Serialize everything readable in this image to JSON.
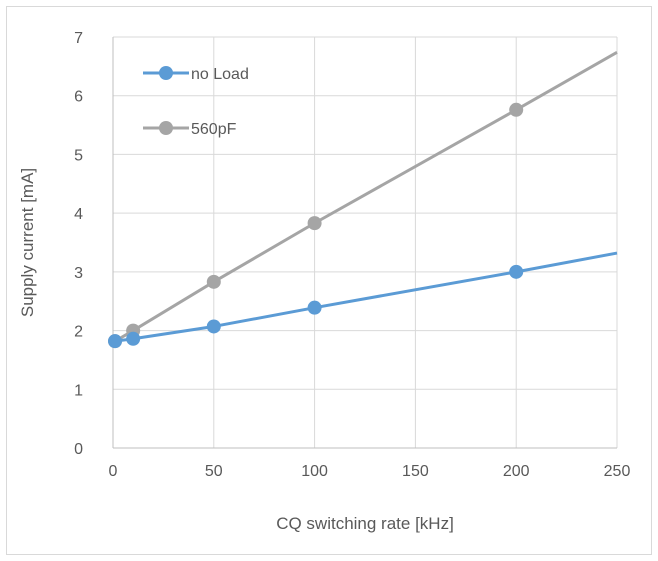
{
  "chart_data": {
    "type": "line",
    "title": "",
    "xlabel": "CQ switching rate [kHz]",
    "ylabel": "Supply current [mA]",
    "xlim": [
      0,
      250
    ],
    "ylim": [
      0,
      7
    ],
    "xticks": [
      0,
      50,
      100,
      150,
      200,
      250
    ],
    "yticks": [
      0,
      1,
      2,
      3,
      4,
      5,
      6,
      7
    ],
    "grid": true,
    "legend": "top-left",
    "series": [
      {
        "name": "no Load",
        "color": "#5b9bd5",
        "marker_x": [
          1,
          10,
          50,
          100,
          200
        ],
        "marker_y": [
          1.82,
          1.86,
          2.07,
          2.39,
          3.0
        ],
        "trend_end": [
          250,
          3.32
        ]
      },
      {
        "name": "560pF",
        "color": "#a5a5a5",
        "marker_x": [
          1,
          10,
          50,
          100,
          200
        ],
        "marker_y": [
          1.82,
          2.0,
          2.83,
          3.83,
          5.76
        ],
        "trend_end": [
          250,
          6.74
        ]
      }
    ]
  }
}
